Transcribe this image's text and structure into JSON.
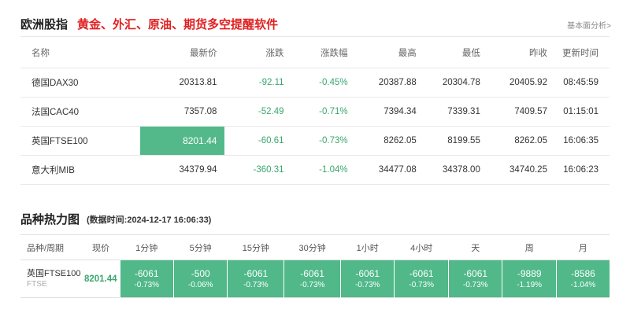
{
  "header": {
    "title": "欧洲股指",
    "promo": "黄金、外汇、原油、期货多空提醒软件",
    "analysis_link": "基本面分析>"
  },
  "quote_table": {
    "columns": [
      "名称",
      "最新价",
      "涨跌",
      "涨跌幅",
      "最高",
      "最低",
      "昨收",
      "更新时间"
    ],
    "rows": [
      {
        "name": "德国DAX30",
        "price": "20313.81",
        "change": "-92.11",
        "pct": "-0.45%",
        "high": "20387.88",
        "low": "20304.78",
        "prev_close": "20405.92",
        "time": "08:45:59"
      },
      {
        "name": "法国CAC40",
        "price": "7357.08",
        "change": "-52.49",
        "pct": "-0.71%",
        "high": "7394.34",
        "low": "7339.31",
        "prev_close": "7409.57",
        "time": "01:15:01"
      },
      {
        "name": "英国FTSE100",
        "price": "8201.44",
        "change": "-60.61",
        "pct": "-0.73%",
        "high": "8262.05",
        "low": "8199.55",
        "prev_close": "8262.05",
        "time": "16:06:35"
      },
      {
        "name": "意大利MIB",
        "price": "34379.94",
        "change": "-360.31",
        "pct": "-1.04%",
        "high": "34477.08",
        "low": "34378.00",
        "prev_close": "34740.25",
        "time": "16:06:23"
      }
    ]
  },
  "heatmap": {
    "title": "品种热力图",
    "data_time": "(数据时间:2024-12-17 16:06:33)",
    "columns": [
      "品种/周期",
      "现价",
      "1分钟",
      "5分钟",
      "15分钟",
      "30分钟",
      "1小时",
      "4小时",
      "天",
      "周",
      "月"
    ],
    "row": {
      "name": "英国FTSE100",
      "code": "FTSE",
      "price": "8201.44",
      "cells": [
        {
          "value": "-6061",
          "pct": "-0.73%"
        },
        {
          "value": "-500",
          "pct": "-0.06%"
        },
        {
          "value": "-6061",
          "pct": "-0.73%"
        },
        {
          "value": "-6061",
          "pct": "-0.73%"
        },
        {
          "value": "-6061",
          "pct": "-0.73%"
        },
        {
          "value": "-6061",
          "pct": "-0.73%"
        },
        {
          "value": "-6061",
          "pct": "-0.73%"
        },
        {
          "value": "-9889",
          "pct": "-1.19%"
        },
        {
          "value": "-8586",
          "pct": "-1.04%"
        }
      ]
    }
  },
  "colors": {
    "promo_red": "#e02020",
    "down_green": "#3aa76d",
    "heat_green": "#50b889",
    "highlight_green": "#54b98a"
  }
}
